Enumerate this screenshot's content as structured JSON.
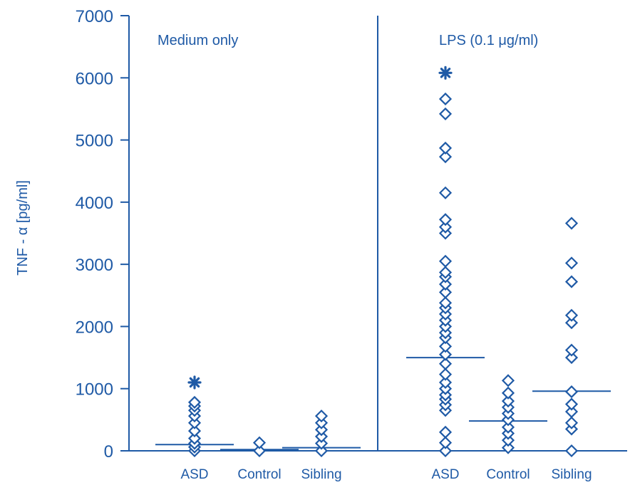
{
  "chart_data": {
    "type": "scatter",
    "ylabel": "TNF - α [pg/ml]",
    "ylim": [
      0,
      7000
    ],
    "yticks": [
      0,
      1000,
      2000,
      3000,
      4000,
      5000,
      6000,
      7000
    ],
    "panels": [
      {
        "label": "Medium only",
        "groups": [
          {
            "name": "ASD",
            "values": [
              0,
              60,
              120,
              200,
              320,
              450,
              560,
              650,
              720,
              780
            ],
            "median": 100,
            "outliers": [
              1100
            ]
          },
          {
            "name": "Control",
            "values": [
              0,
              130
            ],
            "median": 20,
            "outliers": []
          },
          {
            "name": "Sibling",
            "values": [
              0,
              120,
              230,
              340,
              450,
              560
            ],
            "median": 50,
            "outliers": []
          }
        ]
      },
      {
        "label": "LPS (0.1 μg/ml)",
        "groups": [
          {
            "name": "ASD",
            "values": [
              0,
              130,
              300,
              650,
              740,
              830,
              900,
              1000,
              1100,
              1230,
              1400,
              1550,
              1680,
              1820,
              1900,
              2000,
              2100,
              2200,
              2300,
              2380,
              2550,
              2680,
              2800,
              2870,
              3050,
              3500,
              3600,
              3720,
              4150,
              4730,
              4870,
              5420,
              5660
            ],
            "median": 1500,
            "outliers": [
              6080
            ]
          },
          {
            "name": "Control",
            "values": [
              50,
              170,
              280,
              380,
              500,
              600,
              700,
              800,
              930,
              1130
            ],
            "median": 480,
            "outliers": []
          },
          {
            "name": "Sibling",
            "values": [
              0,
              350,
              450,
              630,
              750,
              950,
              1500,
              1620,
              2060,
              2180,
              2720,
              3020,
              3660
            ],
            "median": 960,
            "outliers": []
          }
        ]
      }
    ],
    "colors": {
      "main": "#1f5aa6"
    }
  }
}
